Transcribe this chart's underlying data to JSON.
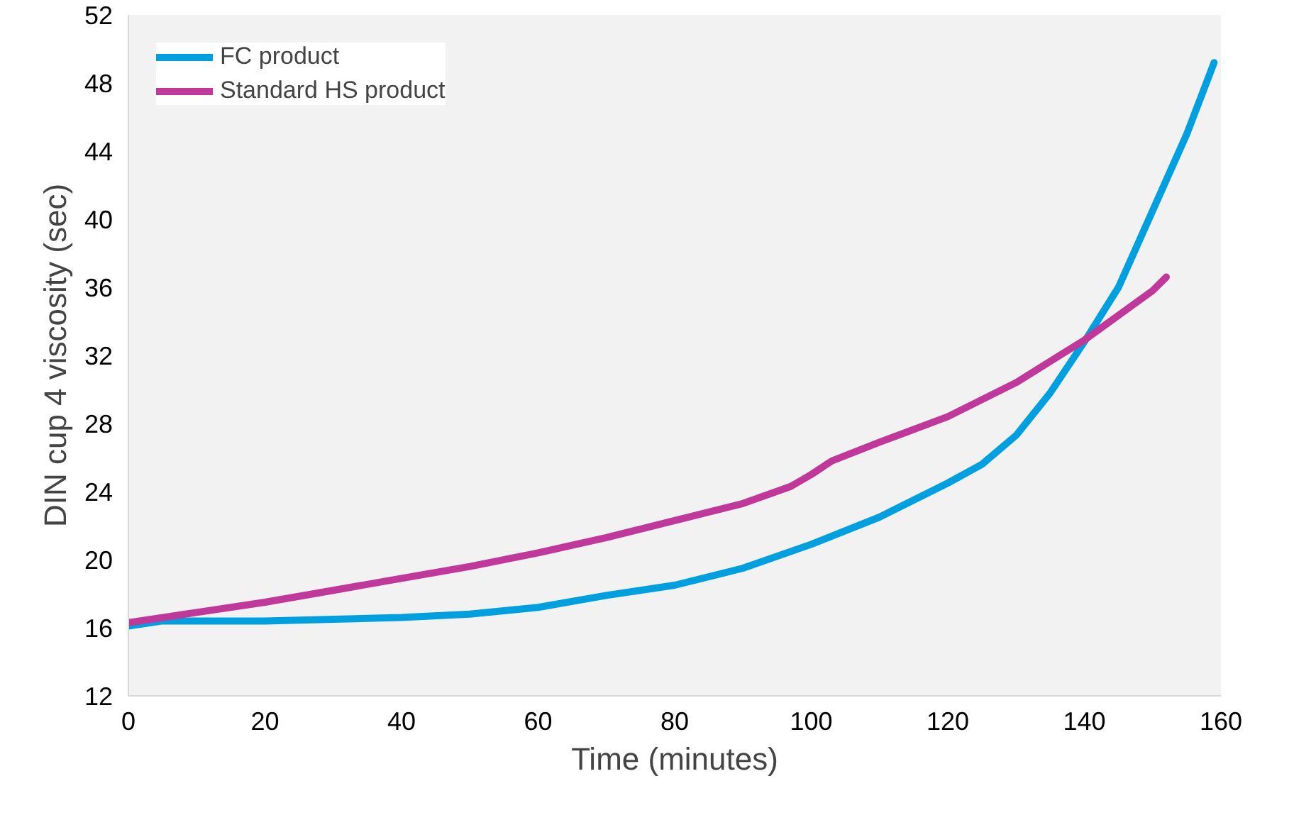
{
  "chart_data": {
    "type": "line",
    "xlabel": "Time (minutes)",
    "ylabel": "DIN cup 4 viscosity (sec)",
    "xlim": [
      0,
      160
    ],
    "ylim": [
      12,
      52
    ],
    "xticks": [
      0,
      20,
      40,
      60,
      80,
      100,
      120,
      140,
      160
    ],
    "yticks": [
      12,
      16,
      20,
      24,
      28,
      32,
      36,
      40,
      44,
      48,
      52
    ],
    "grid": false,
    "legend": "top left",
    "line_style": "solid",
    "marker": "none",
    "series": [
      {
        "name": "FC product",
        "color": "#00a0e0",
        "x": [
          0,
          5,
          20,
          40,
          50,
          60,
          70,
          80,
          90,
          100,
          110,
          120,
          125,
          130,
          135,
          140,
          145,
          150,
          155,
          159
        ],
        "values": [
          16.1,
          16.4,
          16.4,
          16.6,
          16.8,
          17.2,
          17.9,
          18.5,
          19.5,
          20.9,
          22.5,
          24.5,
          25.6,
          27.3,
          29.8,
          32.8,
          36.0,
          40.5,
          45.0,
          49.2
        ]
      },
      {
        "name": "Standard HS product",
        "color": "#c0399a",
        "x": [
          0,
          10,
          20,
          30,
          40,
          50,
          60,
          70,
          80,
          90,
          97,
          100,
          103,
          110,
          120,
          130,
          140,
          150,
          152
        ],
        "values": [
          16.3,
          16.9,
          17.5,
          18.2,
          18.9,
          19.6,
          20.4,
          21.3,
          22.3,
          23.3,
          24.3,
          25.0,
          25.8,
          26.9,
          28.4,
          30.4,
          32.9,
          35.8,
          36.6
        ]
      }
    ]
  }
}
